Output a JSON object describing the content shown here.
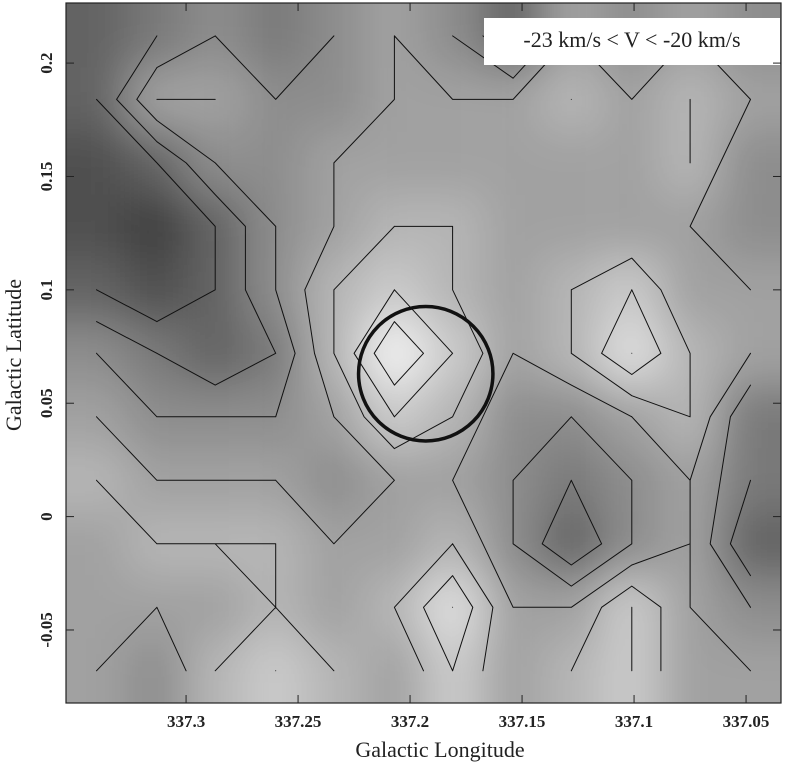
{
  "chart_data": {
    "type": "contour",
    "annotation": "-23 km/s < V < -20 km/s",
    "xlabel": "Galactic Longitude",
    "ylabel": "Galactic Latitude",
    "xlim": [
      337.3536,
      337.0344
    ],
    "ylim": [
      -0.0822,
      0.2265
    ],
    "xticks": [
      337.3,
      337.25,
      337.2,
      337.15,
      337.1,
      337.05
    ],
    "yticks": [
      -0.05,
      0,
      0.05,
      0.1,
      0.15,
      0.2
    ],
    "x": [
      337.34,
      337.313,
      337.287,
      337.26,
      337.234,
      337.207,
      337.181,
      337.154,
      337.128,
      337.101,
      337.075,
      337.048
    ],
    "y": [
      0.212,
      0.184,
      0.156,
      0.128,
      0.1,
      0.072,
      0.044,
      0.016,
      -0.012,
      -0.04,
      -0.068
    ],
    "z": [
      [
        3,
        4,
        5,
        4,
        5,
        6,
        5,
        3,
        6,
        5,
        6,
        5
      ],
      [
        3,
        6,
        6,
        5,
        5,
        6,
        6,
        6,
        7,
        6,
        7,
        6
      ],
      [
        2,
        3,
        5,
        5,
        6,
        6,
        6,
        6,
        6,
        6,
        7,
        5
      ],
      [
        2,
        1,
        3,
        5,
        6,
        7,
        7,
        6,
        6,
        6,
        6,
        5
      ],
      [
        3,
        2,
        3,
        5,
        7,
        8,
        7,
        6,
        7,
        8,
        6,
        6
      ],
      [
        5,
        4,
        3,
        4,
        7,
        10,
        8,
        6,
        7,
        9,
        7,
        6
      ],
      [
        6,
        5,
        5,
        5,
        6,
        8,
        7,
        5,
        5,
        6,
        7,
        4
      ],
      [
        7,
        6,
        6,
        6,
        5,
        6,
        6,
        5,
        4,
        5,
        6,
        4
      ],
      [
        6,
        7,
        7,
        7,
        6,
        6,
        7,
        5,
        3,
        5,
        6,
        3
      ],
      [
        6,
        6,
        6,
        7,
        6,
        7,
        9,
        6,
        6,
        8,
        6,
        5
      ],
      [
        6,
        5,
        7,
        8,
        7,
        6,
        8,
        6,
        7,
        8,
        6,
        6
      ]
    ],
    "levels": [
      3,
      4,
      5,
      6,
      7,
      8,
      9
    ],
    "colormap": [
      "#3c3c3c",
      "#f2f2f2"
    ],
    "contour_color": "#111111",
    "circle": {
      "x": 337.193,
      "y": 0.063,
      "r": 0.03,
      "color": "#111111"
    }
  }
}
